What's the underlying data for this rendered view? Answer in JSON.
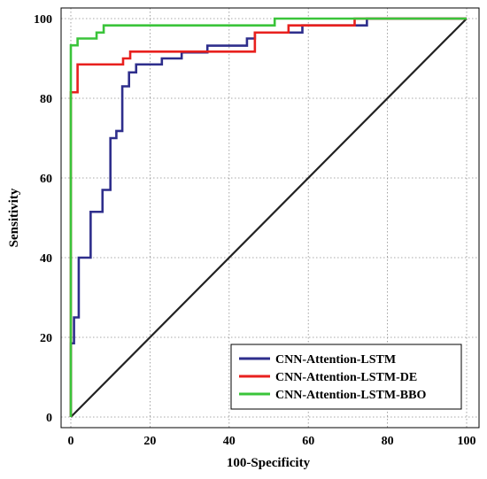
{
  "chart_data": {
    "type": "line",
    "title": "",
    "xlabel": "100-Specificity",
    "ylabel": "Sensitivity",
    "xlim": [
      0,
      100
    ],
    "ylim": [
      0,
      100
    ],
    "x_ticks": [
      "0",
      "20",
      "40",
      "60",
      "80",
      "100"
    ],
    "y_ticks": [
      "0",
      "20",
      "40",
      "60",
      "80",
      "100"
    ],
    "grid": true,
    "legend_position": "bottom-right",
    "reference_line": {
      "x": [
        0,
        100
      ],
      "y": [
        0,
        100
      ],
      "color": "#222222"
    },
    "series": [
      {
        "name": "CNN-Attention-LSTM",
        "color": "#2e2e8c",
        "x": [
          0,
          0,
          0.8,
          0.8,
          2,
          2,
          5,
          5,
          8,
          8,
          10,
          10,
          11.5,
          11.5,
          13,
          13,
          14.7,
          14.7,
          16.5,
          16.5,
          23,
          23,
          28,
          28,
          34.5,
          34.5,
          44.5,
          44.5,
          46.5,
          46.5,
          58.5,
          58.5,
          74.8,
          74.8,
          100
        ],
        "y": [
          0,
          18.5,
          18.5,
          25,
          25,
          40,
          40,
          51.5,
          51.5,
          57,
          57,
          70,
          70,
          71.8,
          71.8,
          83,
          83,
          86.5,
          86.5,
          88.5,
          88.5,
          90,
          90,
          91.5,
          91.5,
          93.2,
          93.2,
          95,
          95,
          96.5,
          96.5,
          98.3,
          98.3,
          100,
          100
        ]
      },
      {
        "name": "CNN-Attention-LSTM-DE",
        "color": "#e8201e",
        "x": [
          0,
          0,
          1.7,
          1.7,
          13.2,
          13.2,
          15,
          15,
          46.5,
          46.5,
          55,
          55,
          71.7,
          71.7,
          100
        ],
        "y": [
          0,
          81.5,
          81.5,
          88.5,
          88.5,
          90,
          90,
          91.7,
          91.7,
          96.5,
          96.5,
          98.3,
          98.3,
          100,
          100
        ]
      },
      {
        "name": "CNN-Attention-LSTM-BBO",
        "color": "#3ac43a",
        "x": [
          0,
          0,
          1.7,
          1.7,
          6.5,
          6.5,
          8.3,
          8.3,
          51.5,
          51.5,
          100
        ],
        "y": [
          0,
          93.3,
          93.3,
          95,
          95,
          96.5,
          96.5,
          98.3,
          98.3,
          100,
          100
        ]
      }
    ]
  }
}
